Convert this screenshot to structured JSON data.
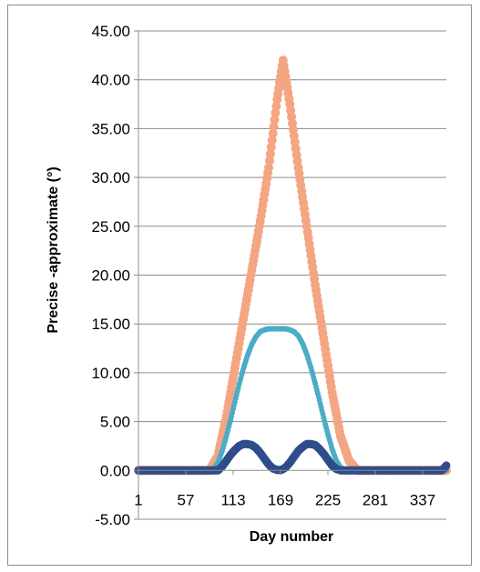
{
  "chart_data": {
    "type": "scatter",
    "title": "",
    "xlabel": "Day number",
    "ylabel": "Precise -approximate  (°)",
    "xlim": [
      1,
      365
    ],
    "ylim": [
      -5,
      45
    ],
    "x_ticks": [
      1,
      57,
      113,
      169,
      225,
      281,
      337
    ],
    "x_tick_labels": [
      "1",
      "57",
      "113",
      "169",
      "225",
      "281",
      "337"
    ],
    "y_ticks": [
      -5,
      0,
      5,
      10,
      15,
      20,
      25,
      30,
      35,
      40,
      45
    ],
    "y_tick_labels": [
      "-5.00",
      "0.00",
      "5.00",
      "10.00",
      "15.00",
      "20.00",
      "25.00",
      "30.00",
      "35.00",
      "40.00",
      "45.00"
    ],
    "grid": "horizontal",
    "legend": "none",
    "series": [
      {
        "color": "#f4a582",
        "x": [
          1,
          85,
          95,
          105,
          115,
          125,
          135,
          145,
          155,
          165,
          172,
          180,
          190,
          200,
          210,
          220,
          230,
          240,
          250,
          260,
          365
        ],
        "y": [
          0,
          0,
          1.5,
          5.5,
          10.5,
          15.5,
          20.5,
          25.5,
          31,
          38,
          42,
          37.5,
          31,
          25,
          19,
          13.5,
          8,
          3.5,
          1,
          0,
          0
        ]
      },
      {
        "color": "#4bacc6",
        "x": [
          1,
          85,
          90,
          95,
          100,
          105,
          110,
          115,
          120,
          125,
          130,
          135,
          140,
          145,
          150,
          155,
          160,
          165,
          170,
          175,
          180,
          185,
          190,
          195,
          200,
          205,
          210,
          215,
          220,
          225,
          230,
          235,
          240,
          245,
          250,
          255,
          260,
          365
        ],
        "y": [
          0,
          0,
          0.2,
          0.8,
          2,
          3.5,
          5.2,
          7,
          8.8,
          10.4,
          11.8,
          12.9,
          13.7,
          14.2,
          14.4,
          14.5,
          14.5,
          14.5,
          14.5,
          14.5,
          14.4,
          14.2,
          13.8,
          13,
          11.9,
          10.5,
          8.9,
          7.2,
          5.4,
          3.7,
          2.2,
          1,
          0.3,
          0.1,
          0,
          0,
          0,
          0
        ]
      },
      {
        "color": "#2e4d8b",
        "x": [
          1,
          95,
          100,
          105,
          110,
          115,
          120,
          125,
          130,
          135,
          140,
          145,
          150,
          155,
          160,
          165,
          170,
          175,
          180,
          185,
          190,
          195,
          200,
          205,
          210,
          215,
          220,
          225,
          230,
          235,
          240,
          245,
          250,
          255,
          360,
          365
        ],
        "y": [
          0,
          0,
          0.4,
          1,
          1.6,
          2.1,
          2.5,
          2.7,
          2.7,
          2.6,
          2.3,
          1.8,
          1.2,
          0.6,
          0.2,
          0.05,
          0.05,
          0.3,
          0.8,
          1.4,
          2,
          2.4,
          2.7,
          2.7,
          2.6,
          2.2,
          1.7,
          1.1,
          0.5,
          0.15,
          0,
          0,
          0,
          0,
          0,
          0.5
        ]
      }
    ]
  }
}
